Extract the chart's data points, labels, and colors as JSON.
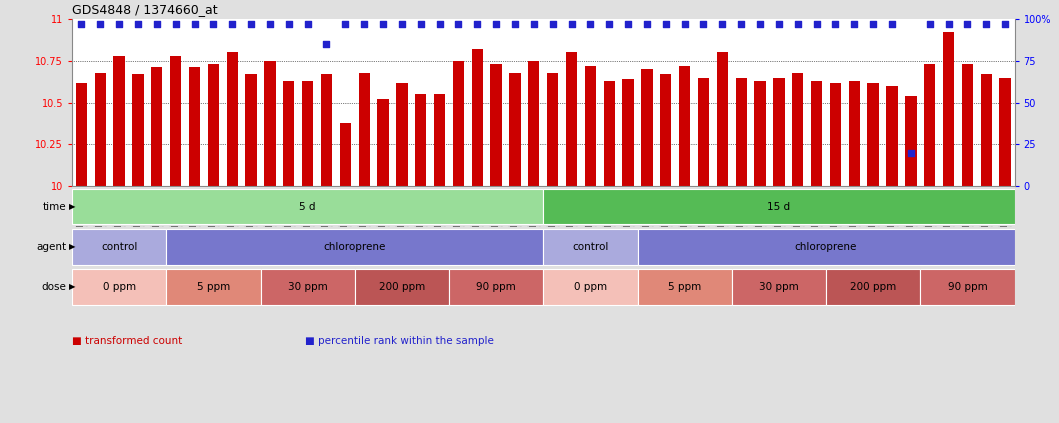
{
  "title": "GDS4848 / 1374660_at",
  "samples": [
    "GSM1001824",
    "GSM1001825",
    "GSM1001826",
    "GSM1001827",
    "GSM1001828",
    "GSM1001854",
    "GSM1001855",
    "GSM1001856",
    "GSM1001857",
    "GSM1001858",
    "GSM1001844",
    "GSM1001845",
    "GSM1001846",
    "GSM1001847",
    "GSM1001848",
    "GSM1001834",
    "GSM1001835",
    "GSM1001836",
    "GSM1001837",
    "GSM1001838",
    "GSM1001864",
    "GSM1001865",
    "GSM1001866",
    "GSM1001867",
    "GSM1001868",
    "GSM1001819",
    "GSM1001820",
    "GSM1001821",
    "GSM1001822",
    "GSM1001823",
    "GSM1001849",
    "GSM1001850",
    "GSM1001851",
    "GSM1001852",
    "GSM1001853",
    "GSM1001839",
    "GSM1001840",
    "GSM1001841",
    "GSM1001842",
    "GSM1001843",
    "GSM1001829",
    "GSM1001830",
    "GSM1001831",
    "GSM1001832",
    "GSM1001833",
    "GSM1001859",
    "GSM1001860",
    "GSM1001861",
    "GSM1001862",
    "GSM1001863"
  ],
  "bar_values": [
    10.62,
    10.68,
    10.78,
    10.67,
    10.71,
    10.78,
    10.71,
    10.73,
    10.8,
    10.67,
    10.75,
    10.63,
    10.63,
    10.67,
    10.38,
    10.68,
    10.52,
    10.62,
    10.55,
    10.55,
    10.75,
    10.82,
    10.73,
    10.68,
    10.75,
    10.68,
    10.8,
    10.72,
    10.63,
    10.64,
    10.7,
    10.67,
    10.72,
    10.65,
    10.8,
    10.65,
    10.63,
    10.65,
    10.68,
    10.63,
    10.62,
    10.63,
    10.62,
    10.6,
    10.54,
    10.73,
    10.92,
    10.73,
    10.67,
    10.65
  ],
  "dot_values": [
    97,
    97,
    97,
    97,
    97,
    97,
    97,
    97,
    97,
    97,
    97,
    97,
    97,
    85,
    97,
    97,
    97,
    97,
    97,
    97,
    97,
    97,
    97,
    97,
    97,
    97,
    97,
    97,
    97,
    97,
    97,
    97,
    97,
    97,
    97,
    97,
    97,
    97,
    97,
    97,
    97,
    97,
    97,
    97,
    20,
    97,
    97,
    97,
    97,
    97
  ],
  "ylim_left": [
    10.0,
    11.0
  ],
  "ylim_right": [
    0,
    100
  ],
  "bar_color": "#cc0000",
  "dot_color": "#2222cc",
  "background_color": "#e0e0e0",
  "bar_area_color": "#ffffff",
  "time_row": [
    {
      "label": "5 d",
      "start": 0,
      "end": 25,
      "color": "#99dd99"
    },
    {
      "label": "15 d",
      "start": 25,
      "end": 50,
      "color": "#55bb55"
    }
  ],
  "agent_row": [
    {
      "label": "control",
      "start": 0,
      "end": 5,
      "color": "#aaaadd"
    },
    {
      "label": "chloroprene",
      "start": 5,
      "end": 25,
      "color": "#7777cc"
    },
    {
      "label": "control",
      "start": 25,
      "end": 30,
      "color": "#aaaadd"
    },
    {
      "label": "chloroprene",
      "start": 30,
      "end": 50,
      "color": "#7777cc"
    }
  ],
  "dose_row": [
    {
      "label": "0 ppm",
      "start": 0,
      "end": 5,
      "color": "#f4c0b8"
    },
    {
      "label": "5 ppm",
      "start": 5,
      "end": 10,
      "color": "#e08878"
    },
    {
      "label": "30 ppm",
      "start": 10,
      "end": 15,
      "color": "#cc6666"
    },
    {
      "label": "200 ppm",
      "start": 15,
      "end": 20,
      "color": "#bb5555"
    },
    {
      "label": "90 ppm",
      "start": 20,
      "end": 25,
      "color": "#cc6666"
    },
    {
      "label": "0 ppm",
      "start": 25,
      "end": 30,
      "color": "#f4c0b8"
    },
    {
      "label": "5 ppm",
      "start": 30,
      "end": 35,
      "color": "#e08878"
    },
    {
      "label": "30 ppm",
      "start": 35,
      "end": 40,
      "color": "#cc6666"
    },
    {
      "label": "200 ppm",
      "start": 40,
      "end": 45,
      "color": "#bb5555"
    },
    {
      "label": "90 ppm",
      "start": 45,
      "end": 50,
      "color": "#cc6666"
    }
  ],
  "hlines": [
    10.25,
    10.5,
    10.75
  ],
  "yticks_left": [
    10.0,
    10.25,
    10.5,
    10.75,
    11.0
  ],
  "ytick_labels_left": [
    "10",
    "10.25",
    "10.5",
    "10.75",
    "11"
  ],
  "yticks_right": [
    0,
    25,
    50,
    75,
    100
  ],
  "ytick_labels_right": [
    "0",
    "25",
    "50",
    "75",
    "100%"
  ],
  "legend": [
    {
      "label": "transformed count",
      "color": "#cc0000"
    },
    {
      "label": "percentile rank within the sample",
      "color": "#2222cc"
    }
  ]
}
